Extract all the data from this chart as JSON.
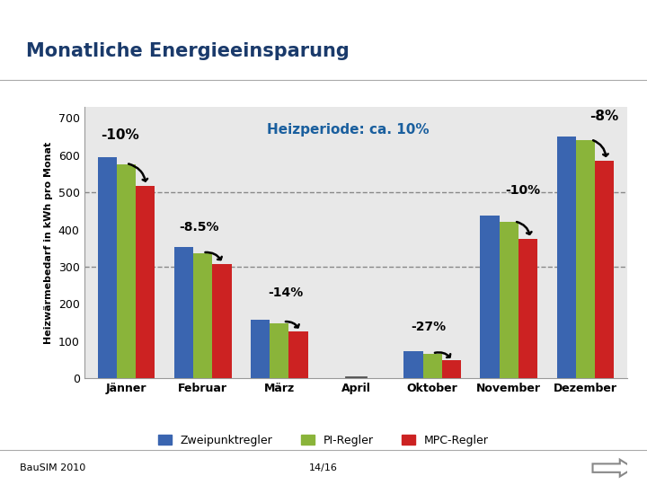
{
  "title": "Monatliche Energieeinsparung",
  "ylabel": "Heizwärmebedarf in kWh pro Monat",
  "categories": [
    "Jänner",
    "Februar",
    "März",
    "April",
    "Oktober",
    "November",
    "Dezember"
  ],
  "zweipunkt": [
    595,
    352,
    158,
    0,
    72,
    438,
    650
  ],
  "pi_regler": [
    575,
    335,
    148,
    0,
    65,
    420,
    640
  ],
  "mpc_regler": [
    518,
    308,
    127,
    0,
    48,
    375,
    585
  ],
  "bar_colors": [
    "#3a65b0",
    "#8ab43a",
    "#cc2222"
  ],
  "ylim": [
    0,
    730
  ],
  "yticks": [
    0,
    100,
    200,
    300,
    400,
    500,
    600,
    700
  ],
  "dashed_lines": [
    500,
    300
  ],
  "heizperiode_text": "Heizperiode: ca. 10%",
  "heizperiode_color": "#1a5f9e",
  "footer_left": "BauSIM 2010",
  "footer_center": "14/16",
  "bg_color": "#ffffff",
  "plot_bg_color": "#e8e8e8",
  "title_color": "#1a3a6b"
}
